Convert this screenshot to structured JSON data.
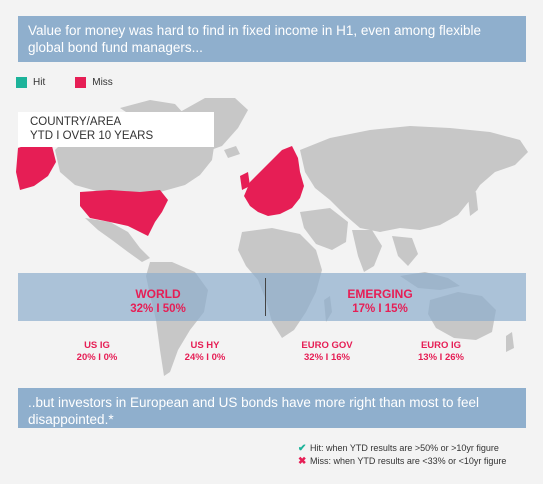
{
  "header": {
    "text": "Value for money was hard to find in fixed income in H1, even among flexible global bond fund managers..."
  },
  "legend": [
    {
      "label": "Hit",
      "color": "#1db39a"
    },
    {
      "label": "Miss",
      "color": "#e61e55"
    }
  ],
  "map": {
    "title_line1": "COUNTRY/AREA",
    "title_line2": "YTD  I  OVER 10 YEARS",
    "land_color": "#c7c7c7",
    "highlight_color": "#e61e55",
    "highlighted_regions": [
      "Alaska",
      "United States",
      "Europe"
    ]
  },
  "stats": {
    "world": {
      "name": "WORLD",
      "value": "32%  I  50%"
    },
    "emerging": {
      "name": "EMERGING",
      "value": "17%  I  15%"
    },
    "us_ig": {
      "name": "US IG",
      "value": "20%  I  0%"
    },
    "us_hy": {
      "name": "US HY",
      "value": "24%  I  0%"
    },
    "euro_gov": {
      "name": "EURO GOV",
      "value": "32%  I  16%"
    },
    "euro_ig": {
      "name": "EURO IG",
      "value": "13%  I  26%"
    }
  },
  "footer": {
    "text": "..but investors in European and US bonds have more right than most to feel disappointed.*"
  },
  "footnotes": {
    "hit": {
      "mark": "✔",
      "color": "#1db39a",
      "text": "Hit: when YTD results are >50% or >10yr figure"
    },
    "miss": {
      "mark": "✖",
      "color": "#e61e55",
      "text": "Miss: when YTD results are <33% or <10yr figure"
    }
  }
}
